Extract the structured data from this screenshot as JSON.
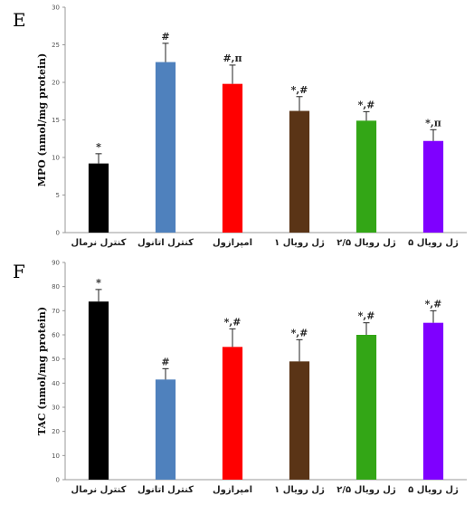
{
  "chart_data": [
    {
      "panel": "E",
      "type": "bar",
      "title": "",
      "xlabel": "",
      "ylabel": "MPO (nmol/mg protein)",
      "ylim": [
        0,
        30
      ],
      "yticks": [
        0,
        5,
        10,
        15,
        20,
        25,
        30
      ],
      "grid": false,
      "categories": [
        "کنترل نرمال",
        "کنترل اتانول",
        "امپرازول",
        "ژل رویال ۱",
        "ژل رویال ۲/۵",
        "ژل رویال ۵"
      ],
      "values": [
        9.2,
        22.7,
        19.8,
        16.2,
        14.9,
        12.2
      ],
      "errors": [
        1.3,
        2.5,
        2.5,
        1.9,
        1.2,
        1.5
      ],
      "annotations": [
        "*",
        "#",
        "#,π",
        "*,#",
        "*,#",
        "*,π"
      ],
      "colors": [
        "#000000",
        "#4f81bd",
        "#ff0000",
        "#5a3416",
        "#33a616",
        "#7f00ff"
      ]
    },
    {
      "panel": "F",
      "type": "bar",
      "title": "",
      "xlabel": "",
      "ylabel": "TAC (nmol/mg protein)",
      "ylim": [
        0,
        90
      ],
      "yticks": [
        0,
        10,
        20,
        30,
        40,
        50,
        60,
        70,
        80,
        90
      ],
      "grid": false,
      "categories": [
        "کنترل نرمال",
        "کنترل اتانول",
        "امپرازول",
        "ژل رویال ۱",
        "ژل رویال ۲/۵",
        "ژل رویال ۵"
      ],
      "values": [
        73.8,
        41.5,
        55.0,
        49.0,
        60.0,
        65.0
      ],
      "errors": [
        5.0,
        4.5,
        7.5,
        9.0,
        5.0,
        5.0
      ],
      "annotations": [
        "*",
        "#",
        "*,#",
        "*,#",
        "*,#",
        "*,#"
      ],
      "colors": [
        "#000000",
        "#4f81bd",
        "#ff0000",
        "#5a3416",
        "#33a616",
        "#7f00ff"
      ]
    }
  ]
}
